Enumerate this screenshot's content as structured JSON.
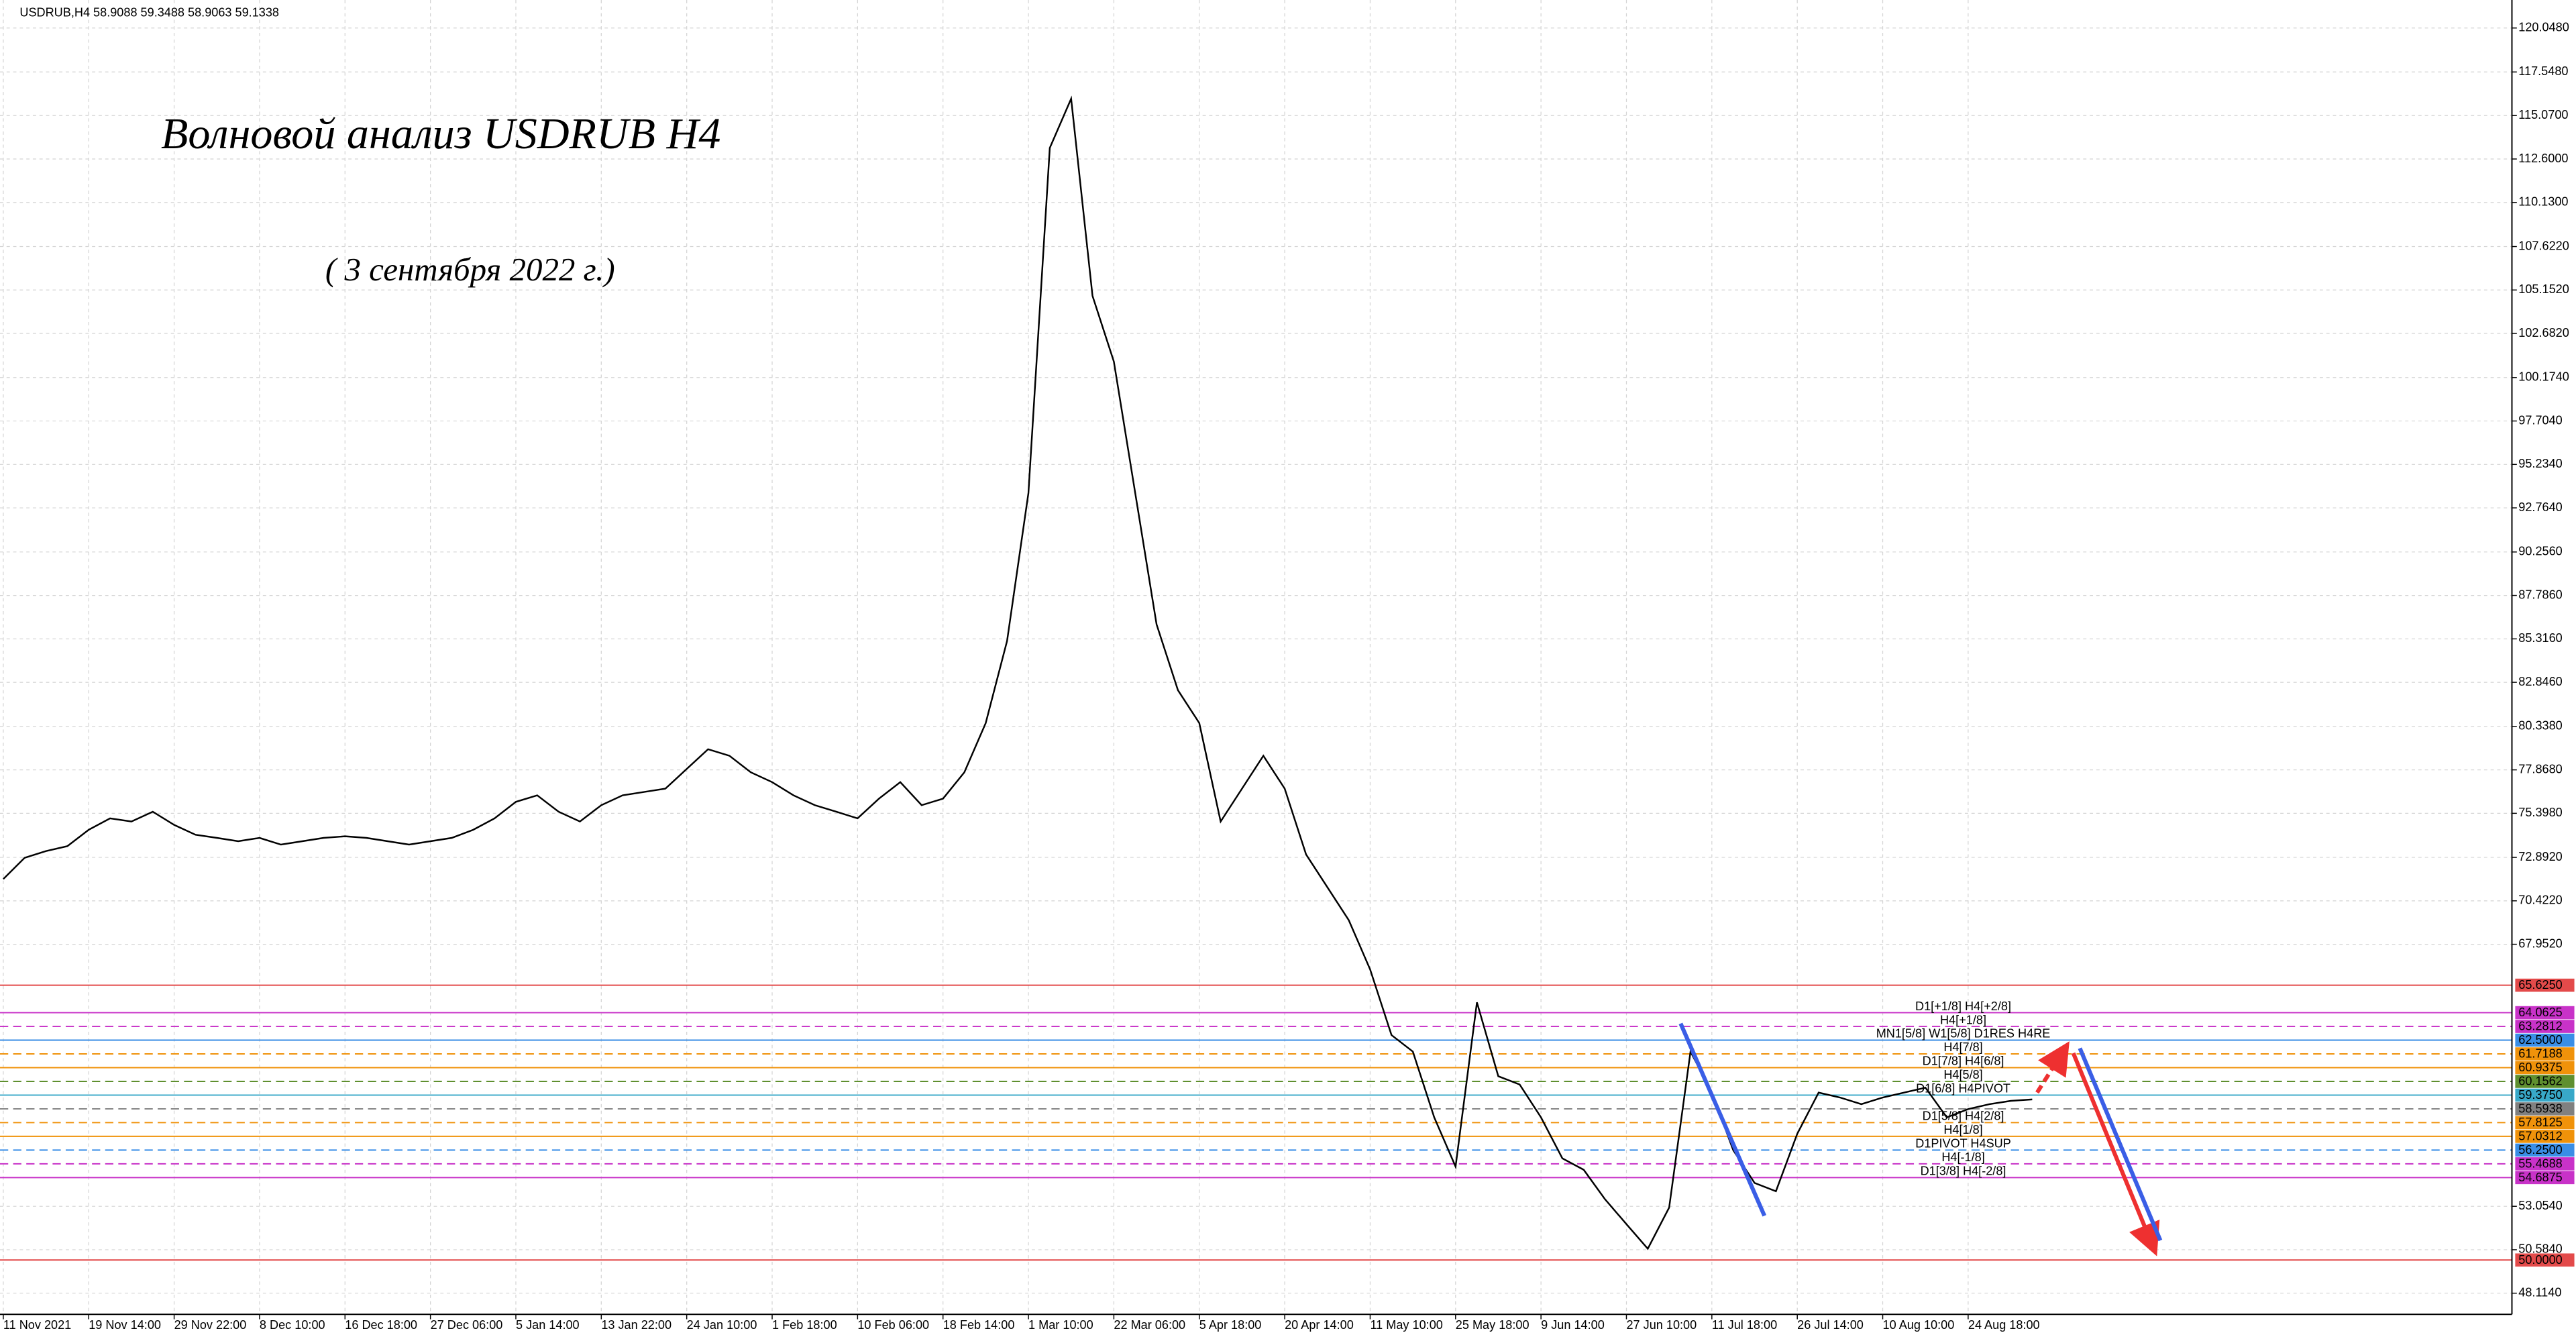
{
  "chart_data": {
    "type": "line",
    "header": "USDRUB,H4  58.9088 59.3488 58.9063 59.1338",
    "title": "Волновой анализ USDRUB H4",
    "subtitle": "( 3 сентября 2022 г.)",
    "color": "#000000",
    "grid": true,
    "categories": [
      "11 Nov 2021",
      null,
      null,
      null,
      "19 Nov 14:00",
      null,
      null,
      null,
      "29 Nov 22:00",
      null,
      null,
      null,
      "8 Dec 10:00",
      null,
      null,
      null,
      "16 Dec 18:00",
      null,
      null,
      null,
      "27 Dec 06:00",
      null,
      null,
      null,
      "5 Jan 14:00",
      null,
      null,
      null,
      "13 Jan 22:00",
      null,
      null,
      null,
      "24 Jan 10:00",
      null,
      null,
      null,
      "1 Feb 18:00",
      null,
      null,
      null,
      "10 Feb 06:00",
      null,
      null,
      null,
      "18 Feb 14:00",
      null,
      null,
      null,
      "1 Mar 10:00",
      null,
      null,
      null,
      "22 Mar 06:00",
      null,
      null,
      null,
      "5 Apr 18:00",
      null,
      null,
      null,
      "20 Apr 14:00",
      null,
      null,
      null,
      "11 May 10:00",
      null,
      null,
      null,
      "25 May 18:00",
      null,
      null,
      null,
      "9 Jun 14:00",
      null,
      null,
      null,
      "27 Jun 10:00",
      null,
      null,
      null,
      "11 Jul 18:00",
      null,
      null,
      null,
      "26 Jul 14:00",
      null,
      null,
      null,
      "10 Aug 10:00",
      null,
      null,
      null,
      "24 Aug 18:00",
      null,
      null,
      null,
      null,
      null,
      null,
      null,
      null,
      null,
      null,
      null,
      null,
      null,
      null,
      null,
      null,
      null,
      null,
      null,
      null,
      null,
      null,
      null,
      null,
      null
    ],
    "values": [
      71.66,
      72.87,
      73.25,
      73.53,
      74.46,
      75.11,
      74.93,
      75.49,
      74.74,
      74.18,
      74.0,
      73.81,
      74.0,
      73.62,
      73.81,
      74.0,
      74.09,
      74.0,
      73.81,
      73.62,
      73.81,
      74.0,
      74.46,
      75.11,
      76.05,
      76.42,
      75.49,
      74.93,
      75.86,
      76.42,
      76.61,
      76.8,
      77.92,
      79.04,
      78.67,
      77.73,
      77.17,
      76.42,
      75.86,
      75.49,
      75.11,
      76.23,
      77.17,
      75.86,
      76.23,
      77.73,
      80.53,
      85.2,
      93.61,
      113.23,
      116.03,
      104.82,
      101.08,
      93.61,
      86.14,
      82.4,
      80.53,
      74.93,
      76.8,
      78.67,
      76.8,
      73.06,
      71.19,
      69.32,
      66.52,
      62.79,
      61.85,
      58.11,
      55.31,
      64.65,
      60.45,
      59.98,
      58.11,
      55.78,
      55.13,
      53.45,
      52.04,
      50.64,
      52.98,
      61.85,
      59.52,
      56.25,
      54.38,
      53.91,
      57.18,
      59.52,
      59.24,
      58.86,
      59.24,
      59.52,
      59.8,
      58.11,
      58.58,
      58.86,
      59.05,
      59.13,
      null,
      null,
      null,
      null,
      null,
      null,
      null,
      null,
      null,
      null,
      null,
      null,
      null,
      null,
      null,
      null,
      null,
      null,
      null,
      null,
      null,
      null
    ],
    "ylim": [
      46.91,
      121.64
    ],
    "yticks": [
      {
        "value": 120.048,
        "label": "120.0480"
      },
      {
        "value": 117.548,
        "label": "117.5480"
      },
      {
        "value": 115.07,
        "label": "115.0700"
      },
      {
        "value": 112.6,
        "label": "112.6000"
      },
      {
        "value": 110.13,
        "label": "110.1300"
      },
      {
        "value": 107.622,
        "label": "107.6220"
      },
      {
        "value": 105.152,
        "label": "105.1520"
      },
      {
        "value": 102.682,
        "label": "102.6820"
      },
      {
        "value": 100.174,
        "label": "100.1740"
      },
      {
        "value": 97.704,
        "label": "97.7040"
      },
      {
        "value": 95.234,
        "label": "95.2340"
      },
      {
        "value": 92.764,
        "label": "92.7640"
      },
      {
        "value": 90.256,
        "label": "90.2560"
      },
      {
        "value": 87.786,
        "label": "87.7860"
      },
      {
        "value": 85.316,
        "label": "85.3160"
      },
      {
        "value": 82.846,
        "label": "82.8460"
      },
      {
        "value": 80.338,
        "label": "80.3380"
      },
      {
        "value": 77.868,
        "label": "77.8680"
      },
      {
        "value": 75.398,
        "label": "75.3980"
      },
      {
        "value": 72.892,
        "label": "72.8920"
      },
      {
        "value": 70.422,
        "label": "70.4220"
      },
      {
        "value": 67.952,
        "label": "67.9520"
      },
      {
        "value": 53.054,
        "label": "53.0540"
      },
      {
        "value": 50.584,
        "label": "50.5840"
      },
      {
        "value": 48.114,
        "label": "48.1140"
      }
    ],
    "levels": [
      {
        "value": 65.625,
        "label": "65.6250",
        "color": "#e34a4a",
        "dashed": false
      },
      {
        "value": 64.0625,
        "label": "64.0625",
        "color": "#c832c8",
        "dashed": false
      },
      {
        "value": 63.2812,
        "label": "63.2812",
        "color": "#c832c8",
        "dashed": true
      },
      {
        "value": 62.5,
        "label": "62.5000",
        "color": "#3a8ee6",
        "dashed": false
      },
      {
        "value": 61.7188,
        "label": "61.7188",
        "color": "#f0920a",
        "dashed": true
      },
      {
        "value": 60.9375,
        "label": "60.9375",
        "color": "#f0920a",
        "dashed": false
      },
      {
        "value": 60.1562,
        "label": "60.1562",
        "color": "#5f8f2f",
        "dashed": true
      },
      {
        "value": 59.375,
        "label": "59.3750",
        "color": "#38a8c8",
        "dashed": false
      },
      {
        "value": 58.5938,
        "label": "58.5938",
        "color": "#808080",
        "dashed": true
      },
      {
        "value": 57.8125,
        "label": "57.8125",
        "color": "#f0920a",
        "dashed": true
      },
      {
        "value": 57.0312,
        "label": "57.0312",
        "color": "#f0920a",
        "dashed": false
      },
      {
        "value": 56.25,
        "label": "56.2500",
        "color": "#3a8ee6",
        "dashed": true
      },
      {
        "value": 55.4688,
        "label": "55.4688",
        "color": "#c832c8",
        "dashed": true
      },
      {
        "value": 54.6875,
        "label": "54.6875",
        "color": "#c832c8",
        "dashed": false
      },
      {
        "value": 50.0,
        "label": "50.0000",
        "color": "#e34a4a",
        "dashed": false
      }
    ],
    "level_notes": [
      {
        "text": "D1[+1/8] H4[+2/8]",
        "value": 64.0625,
        "color": "#c832c8"
      },
      {
        "text": "H4[+1/8]",
        "value": 63.2812,
        "color": "#c832c8"
      },
      {
        "text": "MN1[5/8] W1[5/8] D1RES H4RE",
        "value": 62.5,
        "color": "#3a8ee6"
      },
      {
        "text": "H4[7/8]",
        "value": 61.7188,
        "color": "#f0920a"
      },
      {
        "text": "D1[7/8] H4[6/8]",
        "value": 60.9375,
        "color": "#f0920a"
      },
      {
        "text": "H4[5/8]",
        "value": 60.1562,
        "color": "#5f8f2f"
      },
      {
        "text": "D1[6/8] H4PIVOT",
        "value": 59.375,
        "color": "#38a8c8"
      },
      {
        "text": "D1[5/8] H4[2/8]",
        "value": 57.8125,
        "color": "#f0920a"
      },
      {
        "text": "H4[1/8]",
        "value": 57.0312,
        "color": "#f0920a"
      },
      {
        "text": "D1PIVOT H4SUP",
        "value": 56.25,
        "color": "#3a8ee6"
      },
      {
        "text": "H4[-1/8]",
        "value": 55.4688,
        "color": "#c832c8"
      },
      {
        "text": "D1[3/8] H4[-2/8]",
        "value": 54.6875,
        "color": "#c832c8"
      }
    ]
  }
}
